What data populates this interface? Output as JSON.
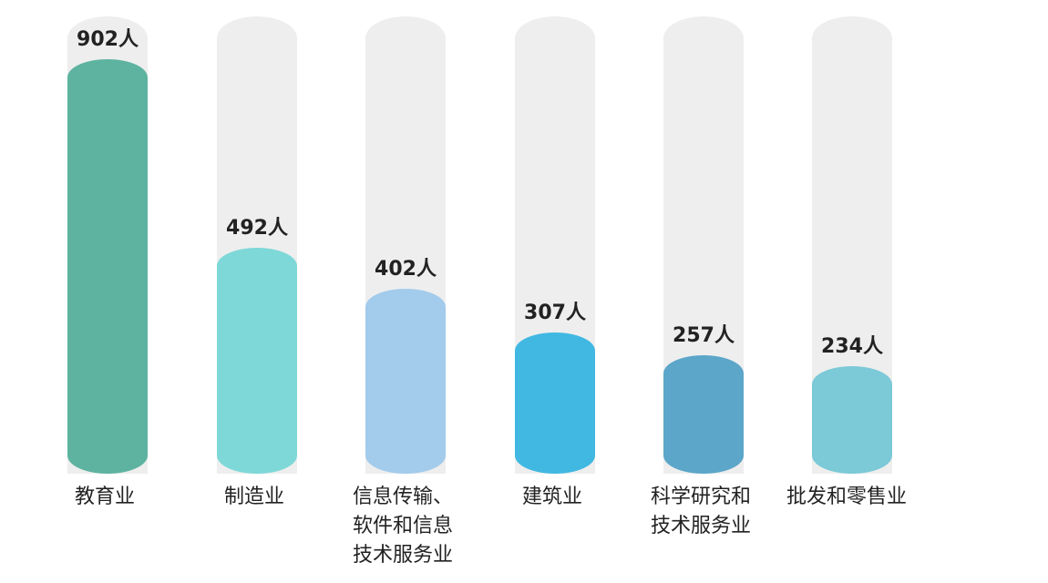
{
  "chart_data": {
    "type": "bar",
    "categories": [
      "教育业",
      "制造业",
      "信息传输、软件和信息技术服务业",
      "建筑业",
      "科学研究和技术服务业",
      "批发和零售业"
    ],
    "values": [
      902,
      492,
      402,
      307,
      257,
      234
    ],
    "value_labels": [
      "902人",
      "492人",
      "402人",
      "307人",
      "257人",
      "234人"
    ],
    "colors": [
      "#5db3a0",
      "#7ed8d8",
      "#a2cbec",
      "#40b8e2",
      "#5ba6c9",
      "#7cc9d7"
    ]
  }
}
